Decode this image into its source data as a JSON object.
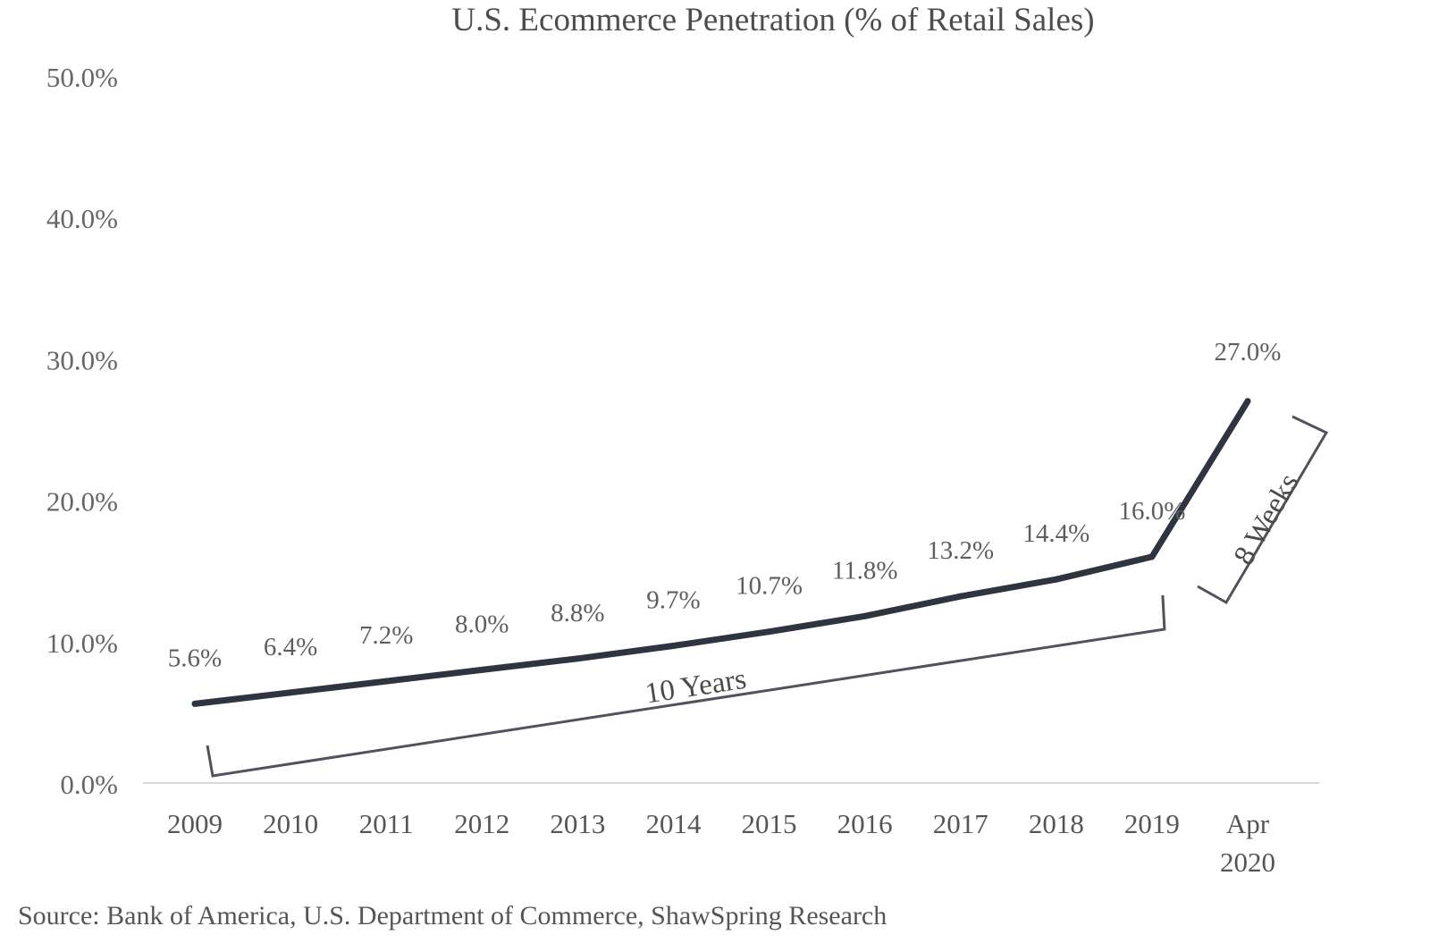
{
  "chart_data": {
    "type": "line",
    "title": "U.S. Ecommerce  Penetration  (% of Retail  Sales)",
    "categories": [
      "2009",
      "2010",
      "2011",
      "2012",
      "2013",
      "2014",
      "2015",
      "2016",
      "2017",
      "2018",
      "2019",
      [
        "Apr",
        "2020"
      ]
    ],
    "series": [
      {
        "values": [
          5.6,
          6.4,
          7.2,
          8.0,
          8.8,
          9.7,
          10.7,
          11.8,
          13.2,
          14.4,
          16.0,
          27.0
        ]
      }
    ],
    "data_labels": [
      "5.6%",
      "6.4%",
      "7.2%",
      "8.0%",
      "8.8%",
      "9.7%",
      "10.7%",
      "11.8%",
      "13.2%",
      "14.4%",
      "16.0%",
      "27.0%"
    ],
    "y_ticks": [
      0,
      10,
      20,
      30,
      40,
      50
    ],
    "y_tick_labels": [
      "0.0%",
      "10.0%",
      "20.0%",
      "30.0%",
      "40.0%",
      "50.0%"
    ],
    "ylim": [
      0,
      50
    ],
    "grid": false,
    "line_color": "#2f3540",
    "annotations": [
      {
        "text": "10 Years",
        "span": [
          "2009",
          "2019"
        ]
      },
      {
        "text": "8 Weeks",
        "span": [
          "2019",
          "Apr 2020"
        ]
      }
    ]
  },
  "source": "Source: Bank of America, U.S. Department of Commerce, ShawSpring Research"
}
